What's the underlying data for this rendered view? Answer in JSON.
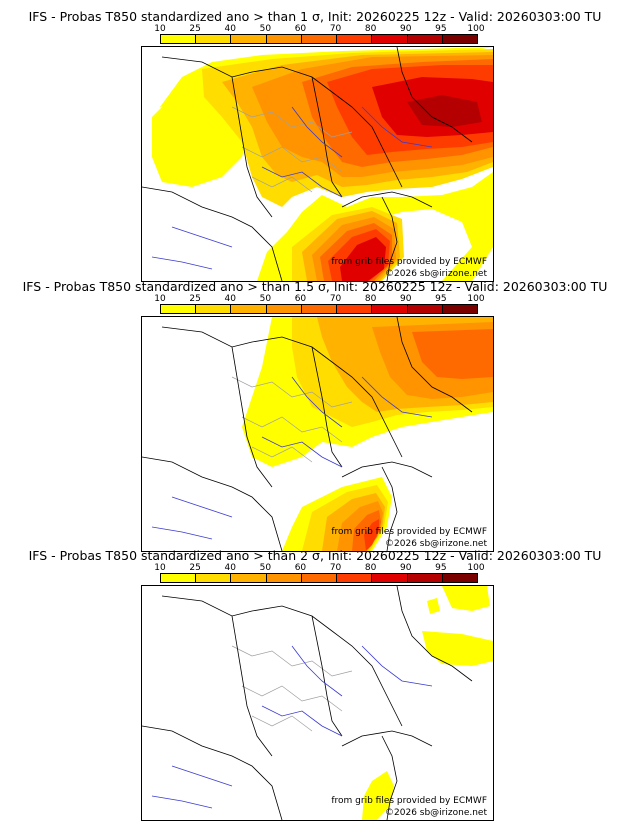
{
  "colors": {
    "scale": [
      "#ffff00",
      "#ffdd00",
      "#ffb300",
      "#ff9400",
      "#ff6a00",
      "#ff3c00",
      "#e00000",
      "#b40000",
      "#7a0000"
    ],
    "border": "#000000",
    "regions": "#a0a0a0",
    "rivers": "#3a3ad0"
  },
  "scale_ticks": [
    "10",
    "25",
    "40",
    "50",
    "60",
    "70",
    "80",
    "90",
    "95",
    "100"
  ],
  "panels": [
    {
      "title": "IFS - Probas T850  standardized ano > than 1 σ, Init: 20260225 12z - Valid: 20260303:00 TU",
      "source": "from grib files provided by ECMWF",
      "copyright": "©2026 sb@irizone.net"
    },
    {
      "title": "IFS - Probas T850  standardized ano > than 1.5 σ, Init: 20260225 12z - Valid: 20260303:00 TU",
      "source": "from grib files provided by ECMWF",
      "copyright": "©2026 sb@irizone.net"
    },
    {
      "title": "IFS - Probas T850  standardized ano > than 2 σ, Init: 20260225 12z - Valid: 20260303:00 TU",
      "source": "from grib files provided by ECMWF",
      "copyright": "©2026 sb@irizone.net"
    }
  ]
}
